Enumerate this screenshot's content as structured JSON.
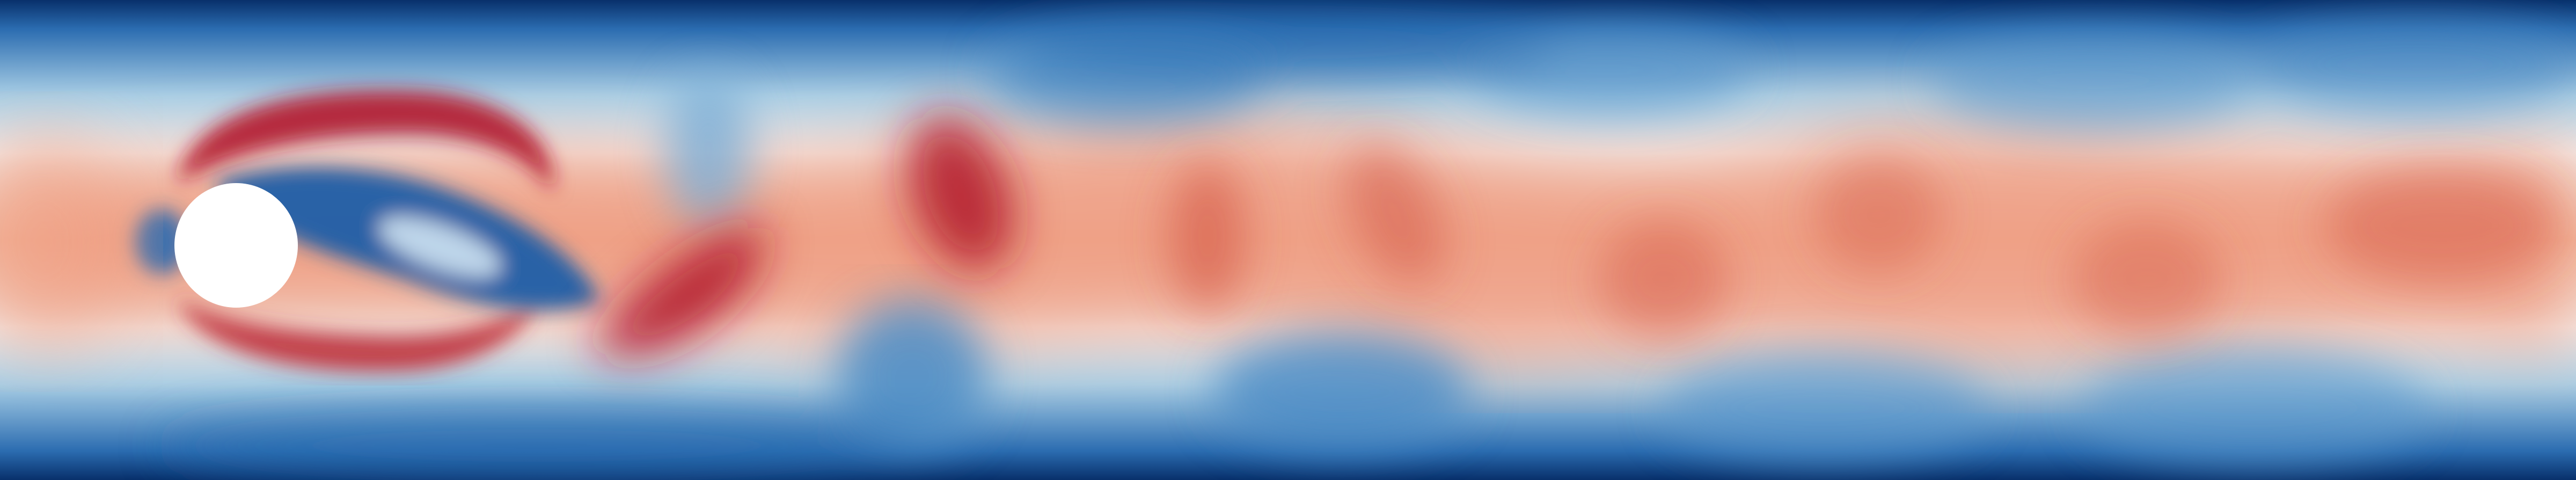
{
  "figure": {
    "content": "flow-field-colormap",
    "colormap": {
      "low": "#08306b",
      "mid_low": "#2f74b5",
      "mid": "#ffffff",
      "mid_high": "#e3654c",
      "high": "#b2182b"
    },
    "background": "#ffffff"
  }
}
